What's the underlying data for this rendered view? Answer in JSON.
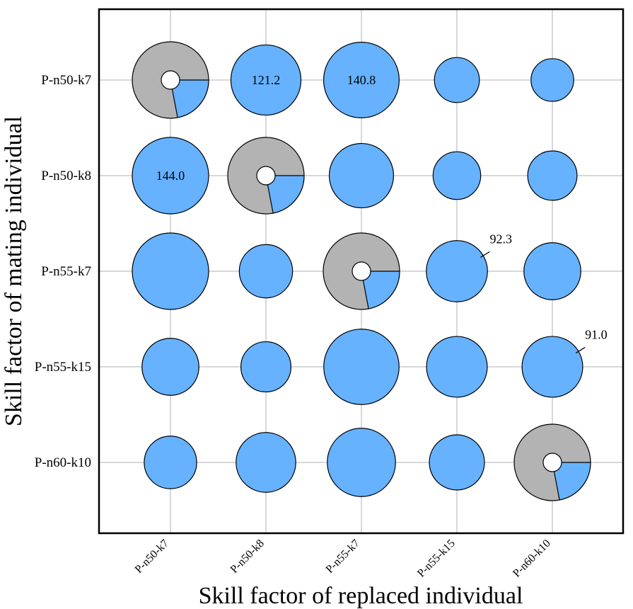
{
  "chart_data": {
    "type": "bubble-matrix",
    "x_categories": [
      "P-n50-k7",
      "P-n50-k8",
      "P-n55-k7",
      "P-n55-k15",
      "P-n60-k10"
    ],
    "y_categories": [
      "P-n50-k7",
      "P-n50-k8",
      "P-n55-k7",
      "P-n55-k15",
      "P-n60-k10"
    ],
    "xlabel": "Skill factor of replaced individual",
    "ylabel": "Skill factor of mating individual",
    "grid": true,
    "colors": {
      "bubble": "#66b2ff",
      "pie_background": "#b3b3b3",
      "pie_slice": "#66b2ff",
      "edge": "#000000",
      "grid": "#b0b0b0"
    },
    "values": [
      [
        null,
        121.2,
        140.8,
        50.0,
        45.0
      ],
      [
        144.0,
        null,
        102.0,
        56.0,
        60.0
      ],
      [
        144.0,
        70.0,
        null,
        92.3,
        80.0
      ],
      [
        80.0,
        62.0,
        140.0,
        91.0,
        91.0
      ],
      [
        68.0,
        88.0,
        115.0,
        75.0,
        null
      ]
    ],
    "diagonal_pie": {
      "slice_fraction": 0.22,
      "outer_value": 144.0
    },
    "labels": [
      {
        "row": 0,
        "col": 1,
        "text": "121.2",
        "placement": "inside"
      },
      {
        "row": 0,
        "col": 2,
        "text": "140.8",
        "placement": "inside"
      },
      {
        "row": 1,
        "col": 0,
        "text": "144.0",
        "placement": "inside"
      },
      {
        "row": 2,
        "col": 3,
        "text": "92.3",
        "placement": "callout"
      },
      {
        "row": 3,
        "col": 4,
        "text": "91.0",
        "placement": "callout"
      }
    ]
  }
}
